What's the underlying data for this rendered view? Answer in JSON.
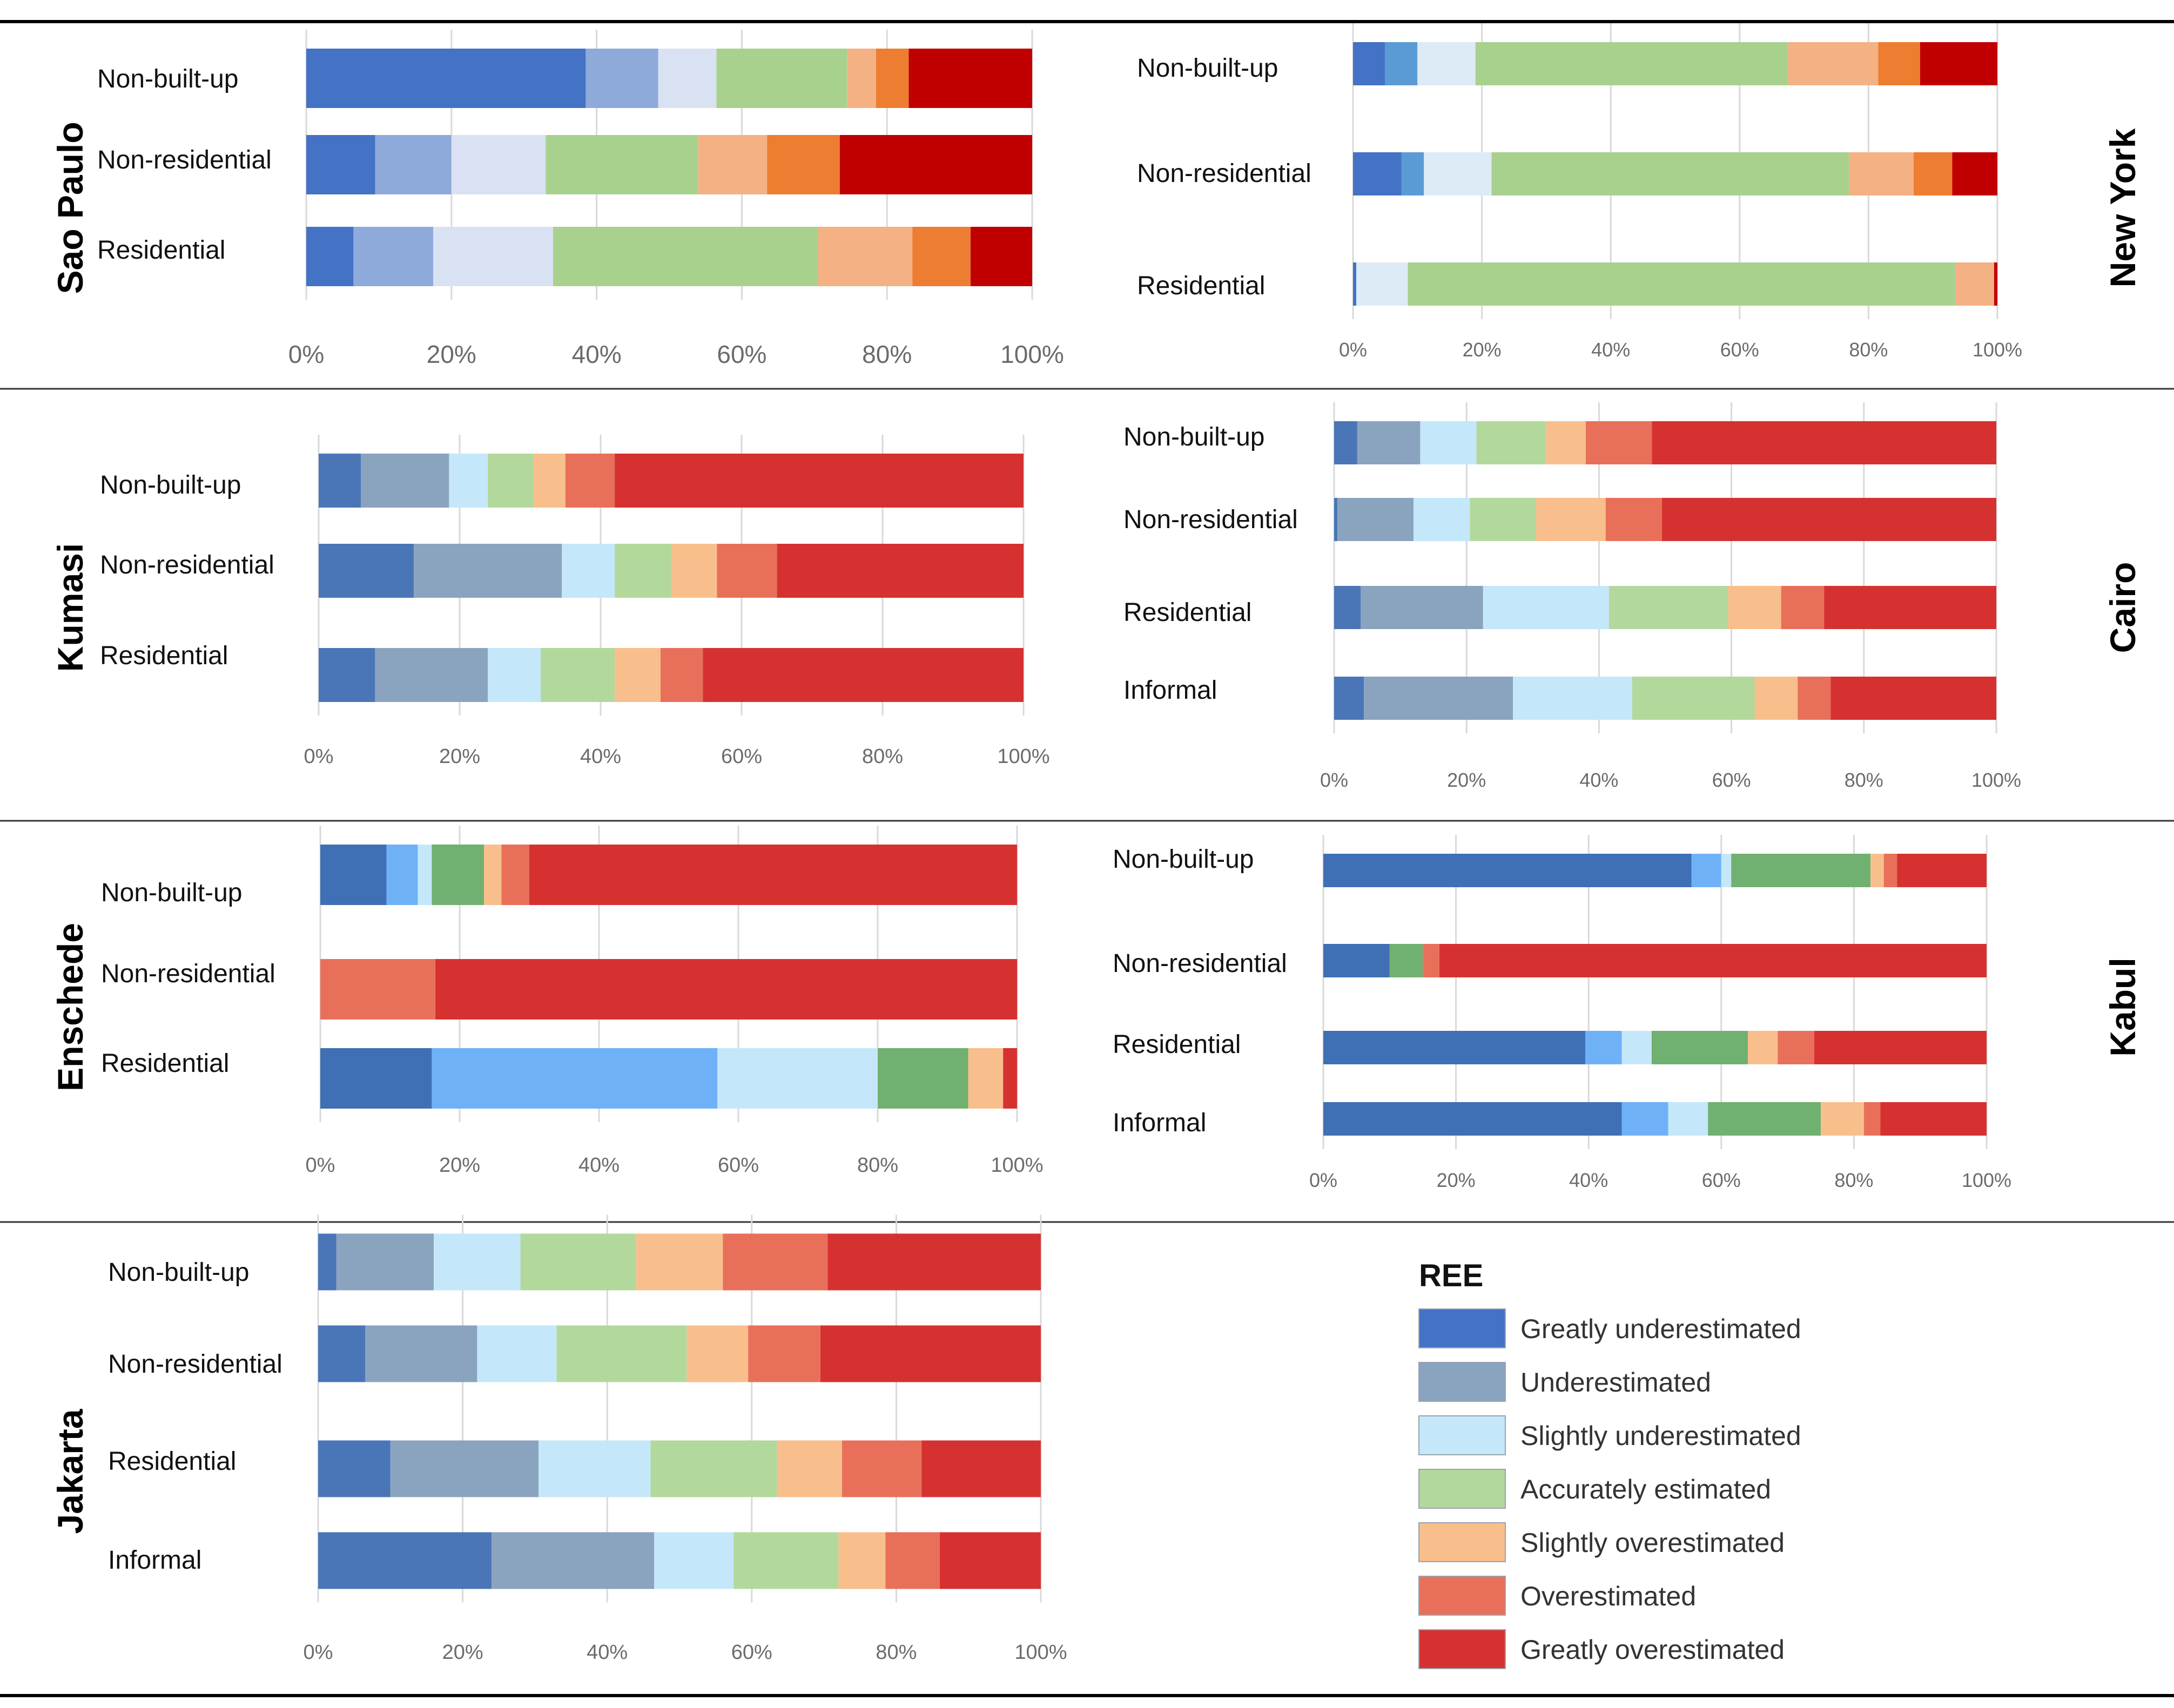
{
  "legend": {
    "title": "REE",
    "items": [
      {
        "label": "Greatly underestimated"
      },
      {
        "label": "Underestimated"
      },
      {
        "label": "Slightly underestimated"
      },
      {
        "label": "Accurately estimated"
      },
      {
        "label": "Slightly overestimated"
      },
      {
        "label": "Overestimated"
      },
      {
        "label": "Greatly overestimated"
      }
    ]
  },
  "chart_data": [
    {
      "type": "bar",
      "orientation": "horizontal",
      "stacked": "percent",
      "city": "Sao Paulo",
      "categories": [
        "Non-built-up",
        "Non-residential",
        "Residential"
      ],
      "x_ticks": [
        "0%",
        "20%",
        "40%",
        "60%",
        "80%",
        "100%"
      ],
      "colors": [
        "#4472c4",
        "#8eaadb",
        "#d9e2f3",
        "#a9d18e",
        "#f4b183",
        "#ed7d31",
        "#c00000"
      ],
      "series": [
        {
          "name": "Greatly underestimated",
          "values": [
            38.5,
            9.5,
            6.5
          ]
        },
        {
          "name": "Underestimated",
          "values": [
            10.0,
            10.5,
            11.0
          ]
        },
        {
          "name": "Slightly underestimated",
          "values": [
            8.0,
            13.0,
            16.5
          ]
        },
        {
          "name": "Accurately estimated",
          "values": [
            18.0,
            21.0,
            36.5
          ]
        },
        {
          "name": "Slightly overestimated",
          "values": [
            4.0,
            9.5,
            13.0
          ]
        },
        {
          "name": "Overestimated",
          "values": [
            4.5,
            10.0,
            8.0
          ]
        },
        {
          "name": "Greatly overestimated",
          "values": [
            17.0,
            26.5,
            8.5
          ]
        }
      ]
    },
    {
      "type": "bar",
      "orientation": "horizontal",
      "stacked": "percent",
      "city": "New York",
      "categories": [
        "Non-built-up",
        "Non-residential",
        "Residential"
      ],
      "x_ticks": [
        "0%",
        "20%",
        "40%",
        "60%",
        "80%",
        "100%"
      ],
      "colors": [
        "#4472c4",
        "#5b9bd5",
        "#ddebf7",
        "#a9d18e",
        "#f4b183",
        "#ed7d31",
        "#c00000"
      ],
      "series": [
        {
          "name": "Greatly underestimated",
          "values": [
            5.0,
            7.5,
            0.5
          ]
        },
        {
          "name": "Underestimated",
          "values": [
            5.0,
            3.5,
            0.0
          ]
        },
        {
          "name": "Slightly underestimated",
          "values": [
            9.0,
            10.5,
            8.0
          ]
        },
        {
          "name": "Accurately estimated",
          "values": [
            48.5,
            55.5,
            85.0
          ]
        },
        {
          "name": "Slightly overestimated",
          "values": [
            14.0,
            10.0,
            6.0
          ]
        },
        {
          "name": "Overestimated",
          "values": [
            6.5,
            6.0,
            0.0
          ]
        },
        {
          "name": "Greatly overestimated",
          "values": [
            12.0,
            7.0,
            0.5
          ]
        }
      ]
    },
    {
      "type": "bar",
      "orientation": "horizontal",
      "stacked": "percent",
      "city": "Kumasi",
      "categories": [
        "Non-built-up",
        "Non-residential",
        "Residential"
      ],
      "x_ticks": [
        "0%",
        "20%",
        "40%",
        "60%",
        "80%",
        "100%"
      ],
      "colors": [
        "#4a76b8",
        "#8aa3bf",
        "#c5e7fa",
        "#b3d89c",
        "#f8bf8c",
        "#e8705a",
        "#d63131"
      ],
      "series": [
        {
          "name": "Greatly underestimated",
          "values": [
            6.0,
            13.5,
            8.0
          ]
        },
        {
          "name": "Underestimated",
          "values": [
            12.5,
            21.0,
            16.0
          ]
        },
        {
          "name": "Slightly underestimated",
          "values": [
            5.5,
            7.5,
            7.5
          ]
        },
        {
          "name": "Accurately estimated",
          "values": [
            6.5,
            8.0,
            10.5
          ]
        },
        {
          "name": "Slightly overestimated",
          "values": [
            4.5,
            6.5,
            6.5
          ]
        },
        {
          "name": "Overestimated",
          "values": [
            7.0,
            8.5,
            6.0
          ]
        },
        {
          "name": "Greatly overestimated",
          "values": [
            58.0,
            35.0,
            45.5
          ]
        }
      ]
    },
    {
      "type": "bar",
      "orientation": "horizontal",
      "stacked": "percent",
      "city": "Cairo",
      "categories": [
        "Non-built-up",
        "Non-residential",
        "Residential",
        "Informal"
      ],
      "x_ticks": [
        "0%",
        "20%",
        "40%",
        "60%",
        "80%",
        "100%"
      ],
      "colors": [
        "#4a76b8",
        "#8aa3bf",
        "#c5e7fa",
        "#b3d89c",
        "#f8bf8c",
        "#e8705a",
        "#d63131"
      ],
      "series": [
        {
          "name": "Greatly underestimated",
          "values": [
            3.5,
            0.5,
            4.0,
            4.5
          ]
        },
        {
          "name": "Underestimated",
          "values": [
            9.5,
            11.5,
            18.5,
            22.5
          ]
        },
        {
          "name": "Slightly underestimated",
          "values": [
            8.5,
            8.5,
            19.0,
            18.0
          ]
        },
        {
          "name": "Accurately estimated",
          "values": [
            10.5,
            10.0,
            18.0,
            18.5
          ]
        },
        {
          "name": "Slightly overestimated",
          "values": [
            6.0,
            10.5,
            8.0,
            6.5
          ]
        },
        {
          "name": "Overestimated",
          "values": [
            10.0,
            8.5,
            6.5,
            5.0
          ]
        },
        {
          "name": "Greatly overestimated",
          "values": [
            52.0,
            50.5,
            26.0,
            25.0
          ]
        }
      ]
    },
    {
      "type": "bar",
      "orientation": "horizontal",
      "stacked": "percent",
      "city": "Enschede",
      "categories": [
        "Non-built-up",
        "Non-residential",
        "Residential"
      ],
      "x_ticks": [
        "0%",
        "20%",
        "40%",
        "60%",
        "80%",
        "100%"
      ],
      "colors": [
        "#3f6fb4",
        "#6fb1f7",
        "#c5e7fa",
        "#70b070",
        "#f8bf8c",
        "#e8705a",
        "#d63131"
      ],
      "series": [
        {
          "name": "Greatly underestimated",
          "values": [
            9.5,
            0.0,
            16.0
          ]
        },
        {
          "name": "Underestimated",
          "values": [
            4.5,
            0.0,
            41.0
          ]
        },
        {
          "name": "Slightly underestimated",
          "values": [
            2.0,
            0.0,
            23.0
          ]
        },
        {
          "name": "Accurately estimated",
          "values": [
            7.5,
            0.0,
            13.0
          ]
        },
        {
          "name": "Slightly overestimated",
          "values": [
            2.5,
            0.0,
            5.0
          ]
        },
        {
          "name": "Overestimated",
          "values": [
            4.0,
            16.5,
            0.0
          ]
        },
        {
          "name": "Greatly overestimated",
          "values": [
            70.0,
            83.5,
            2.0
          ]
        }
      ]
    },
    {
      "type": "bar",
      "orientation": "horizontal",
      "stacked": "percent",
      "city": "Kabul",
      "categories": [
        "Non-built-up",
        "Non-residential",
        "Residential",
        "Informal"
      ],
      "x_ticks": [
        "0%",
        "20%",
        "40%",
        "60%",
        "80%",
        "100%"
      ],
      "colors": [
        "#3f6fb4",
        "#6fb1f7",
        "#c5e7fa",
        "#70b070",
        "#f8bf8c",
        "#e8705a",
        "#d63131"
      ],
      "series": [
        {
          "name": "Greatly underestimated",
          "values": [
            55.5,
            10.0,
            39.5,
            45.0
          ]
        },
        {
          "name": "Underestimated",
          "values": [
            4.5,
            0.0,
            5.5,
            7.0
          ]
        },
        {
          "name": "Slightly underestimated",
          "values": [
            1.5,
            0.0,
            4.5,
            6.0
          ]
        },
        {
          "name": "Accurately estimated",
          "values": [
            21.0,
            5.0,
            14.5,
            17.0
          ]
        },
        {
          "name": "Slightly overestimated",
          "values": [
            2.0,
            0.0,
            4.5,
            6.5
          ]
        },
        {
          "name": "Overestimated",
          "values": [
            2.0,
            2.5,
            5.5,
            2.5
          ]
        },
        {
          "name": "Greatly overestimated",
          "values": [
            13.5,
            82.5,
            26.0,
            16.0
          ]
        }
      ]
    },
    {
      "type": "bar",
      "orientation": "horizontal",
      "stacked": "percent",
      "city": "Jakarta",
      "categories": [
        "Non-built-up",
        "Non-residential",
        "Residential",
        "Informal"
      ],
      "x_ticks": [
        "0%",
        "20%",
        "40%",
        "60%",
        "80%",
        "100%"
      ],
      "colors": [
        "#4a76b8",
        "#8aa3bf",
        "#c5e7fa",
        "#b3d89c",
        "#f8bf8c",
        "#e8705a",
        "#d63131"
      ],
      "series": [
        {
          "name": "Greatly underestimated",
          "values": [
            2.5,
            6.5,
            10.0,
            24.0
          ]
        },
        {
          "name": "Underestimated",
          "values": [
            13.5,
            15.5,
            20.5,
            22.5
          ]
        },
        {
          "name": "Slightly underestimated",
          "values": [
            12.0,
            11.0,
            15.5,
            11.0
          ]
        },
        {
          "name": "Accurately estimated",
          "values": [
            16.0,
            18.0,
            17.5,
            14.5
          ]
        },
        {
          "name": "Slightly overestimated",
          "values": [
            12.0,
            8.5,
            9.0,
            6.5
          ]
        },
        {
          "name": "Overestimated",
          "values": [
            14.5,
            10.0,
            11.0,
            7.5
          ]
        },
        {
          "name": "Greatly overestimated",
          "values": [
            29.5,
            30.5,
            16.5,
            14.0
          ]
        }
      ]
    }
  ]
}
